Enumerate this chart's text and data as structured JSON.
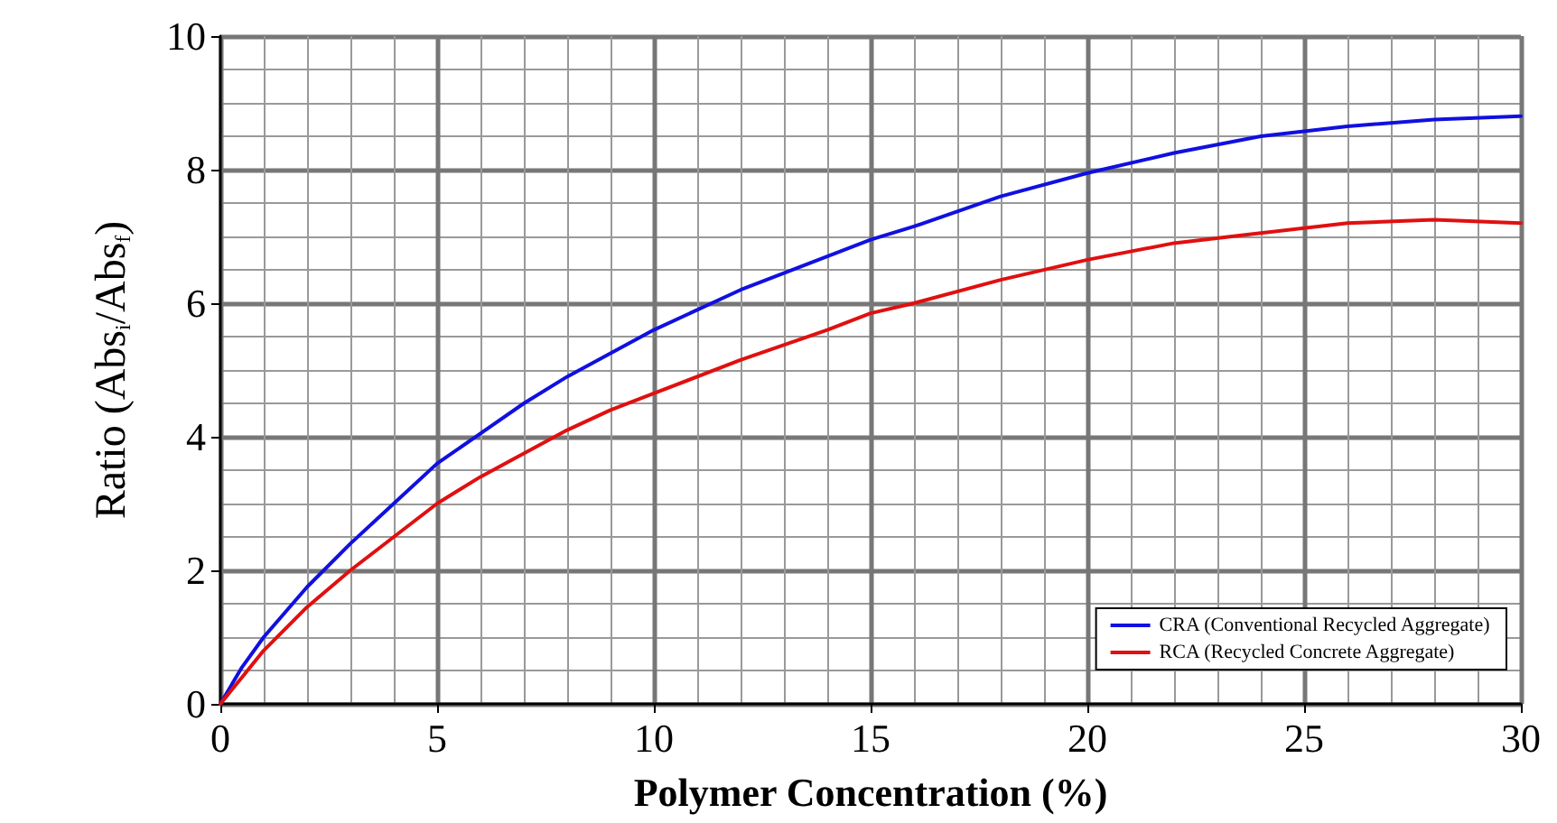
{
  "chart_data": {
    "type": "line",
    "xlabel": "Polymer Concentration (%)",
    "ylabel": "Ratio (Abs$_{i}$/Abs$_{f}$)",
    "xlim": [
      0,
      30
    ],
    "xticks": [
      0,
      5,
      10,
      15,
      20,
      25,
      30
    ],
    "ylim": [
      0,
      10
    ],
    "yticks": [
      0,
      2,
      4,
      6,
      8,
      10
    ],
    "grid": true,
    "legend": "bottom right",
    "marker": "none",
    "line_style": "solid",
    "x": [
      0,
      0.5,
      1,
      2,
      3,
      4,
      5,
      6,
      7,
      8,
      9,
      10,
      12,
      14,
      15,
      16,
      18,
      20,
      22,
      24,
      26,
      28,
      30
    ],
    "series": [
      {
        "name": "CRA (Conventional Recycled Aggregate)",
        "color": "#1010e0",
        "values": [
          0,
          0.55,
          1.0,
          1.75,
          2.4,
          3.0,
          3.6,
          4.05,
          4.5,
          4.9,
          5.25,
          5.6,
          6.2,
          6.7,
          6.95,
          7.15,
          7.6,
          7.95,
          8.25,
          8.5,
          8.65,
          8.75,
          8.8
        ]
      },
      {
        "name": "RCA (Recycled Concrete Aggregate)",
        "color": "#e01010",
        "values": [
          0,
          0.4,
          0.8,
          1.45,
          2.0,
          2.5,
          3.0,
          3.4,
          3.75,
          4.1,
          4.4,
          4.65,
          5.15,
          5.6,
          5.85,
          6.0,
          6.35,
          6.65,
          6.9,
          7.05,
          7.2,
          7.25,
          7.2
        ]
      }
    ]
  }
}
